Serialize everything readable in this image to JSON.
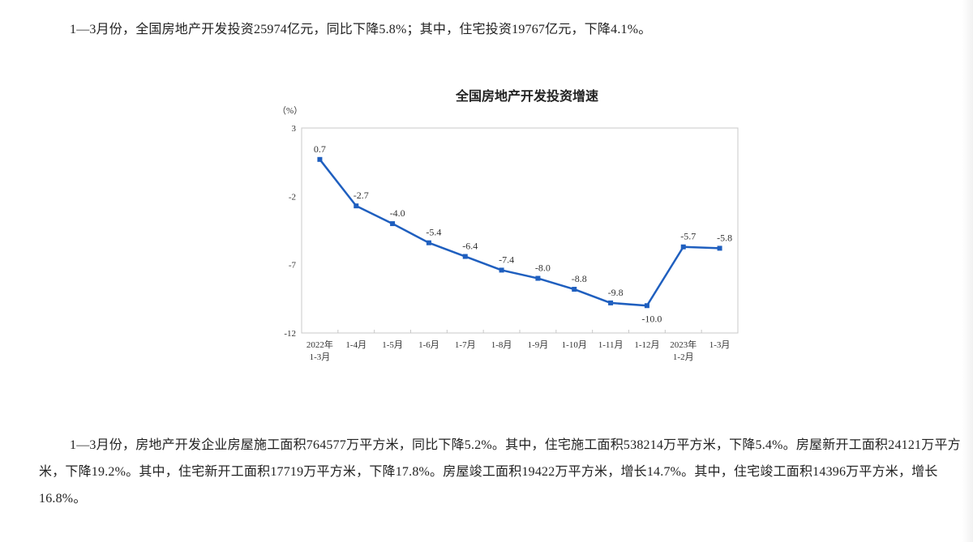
{
  "paragraphs": {
    "p1": "1—3月份，全国房地产开发投资25974亿元，同比下降5.8%；其中，住宅投资19767亿元，下降4.1%。",
    "p2": "1—3月份，房地产开发企业房屋施工面积764577万平方米，同比下降5.2%。其中，住宅施工面积538214万平方米，下降5.4%。房屋新开工面积24121万平方米，下降19.2%。其中，住宅新开工面积17719万平方米，下降17.8%。房屋竣工面积19422万平方米，增长14.7%。其中，住宅竣工面积14396万平方米，增长16.8%。"
  },
  "chart": {
    "title": "全国房地产开发投资增速",
    "unit": "（%）"
  },
  "chart_data": {
    "type": "line",
    "title": "全国房地产开发投资增速",
    "xlabel": "",
    "ylabel": "（%）",
    "ylim": [
      -12,
      3
    ],
    "yticks": [
      3,
      -2,
      -7,
      -12
    ],
    "grid": false,
    "legend": null,
    "categories": [
      "2022年\n1-3月",
      "1-4月",
      "1-5月",
      "1-6月",
      "1-7月",
      "1-8月",
      "1-9月",
      "1-10月",
      "1-11月",
      "1-12月",
      "2023年\n1-2月",
      "1-3月"
    ],
    "series": [
      {
        "name": "全国房地产开发投资增速",
        "color": "#1f5fbf",
        "values": [
          0.7,
          -2.7,
          -4.0,
          -5.4,
          -6.4,
          -7.4,
          -8.0,
          -8.8,
          -9.8,
          -10.0,
          -5.7,
          -5.8
        ],
        "labels": [
          "0.7",
          "-2.7",
          "-4.0",
          "-5.4",
          "-6.4",
          "-7.4",
          "-8.0",
          "-8.8",
          "-9.8",
          "-10.0",
          "-5.7",
          "-5.8"
        ]
      }
    ]
  }
}
